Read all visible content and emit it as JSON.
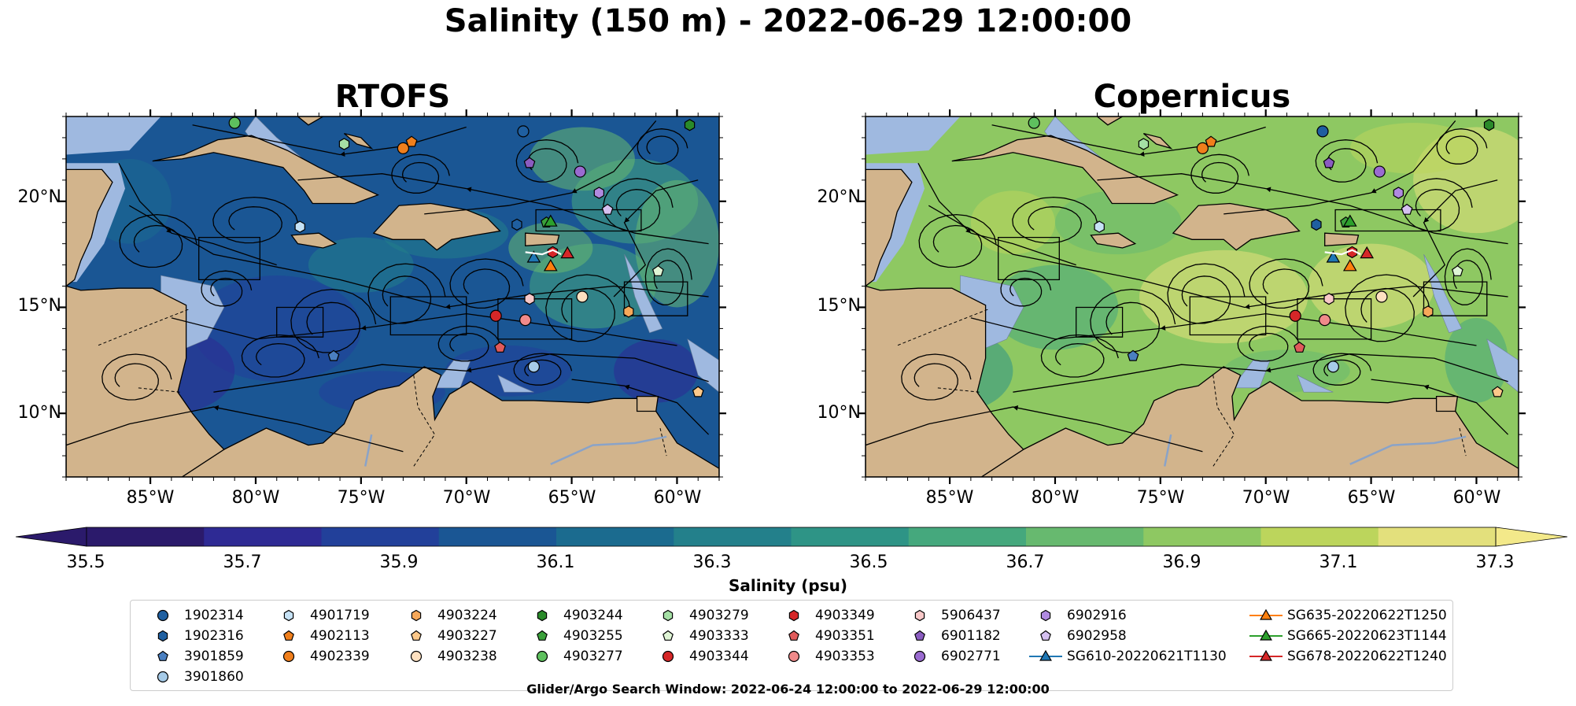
{
  "title": "Salinity (150 m) - 2022-06-29 12:00:00",
  "panels": [
    {
      "id": "rtofs",
      "title": "RTOFS",
      "colormap_level": "low"
    },
    {
      "id": "copernicus",
      "title": "Copernicus",
      "colormap_level": "high"
    }
  ],
  "map": {
    "lon_range": [
      -89,
      -58
    ],
    "lat_range": [
      7,
      24
    ],
    "lon_ticks": [
      "85°W",
      "80°W",
      "75°W",
      "70°W",
      "65°W",
      "60°W"
    ],
    "lat_ticks": [
      "20°N",
      "15°N",
      "10°N"
    ],
    "land_color": "#d2b48c",
    "shelf_color": "#9fb9e0",
    "deep_color": "#2a1a6e"
  },
  "colorbar": {
    "label": "Salinity (psu)",
    "ticks": [
      "35.5",
      "35.7",
      "35.9",
      "36.1",
      "36.3",
      "36.5",
      "36.7",
      "36.9",
      "37.1",
      "37.3"
    ],
    "min": 35.5,
    "max": 37.3,
    "colors": [
      "#2b1a6b",
      "#2e2a94",
      "#22409a",
      "#1a5694",
      "#1b6b8f",
      "#23808b",
      "#2e9486",
      "#45a87d",
      "#67b96f",
      "#8ec862",
      "#bcd55c",
      "#e3e07c"
    ]
  },
  "legend": {
    "items": [
      {
        "id": "1902314",
        "marker": "circle",
        "color": "#1f5fa0"
      },
      {
        "id": "1902316",
        "marker": "hexagon",
        "color": "#1f5fa0"
      },
      {
        "id": "3901859",
        "marker": "pentagon",
        "color": "#4a7fc0"
      },
      {
        "id": "3901860",
        "marker": "circle",
        "color": "#a6cbe8"
      },
      {
        "id": "4901719",
        "marker": "hexagon",
        "color": "#c6e2f5"
      },
      {
        "id": "4902113",
        "marker": "pentagon",
        "color": "#f07f1c"
      },
      {
        "id": "4902339",
        "marker": "circle",
        "color": "#f07f1c"
      },
      {
        "id": "4903224",
        "marker": "hexagon",
        "color": "#f6a85a"
      },
      {
        "id": "4903227",
        "marker": "pentagon",
        "color": "#fcc88a"
      },
      {
        "id": "4903238",
        "marker": "circle",
        "color": "#fde0c0"
      },
      {
        "id": "4903244",
        "marker": "hexagon",
        "color": "#2a8a2a"
      },
      {
        "id": "4903255",
        "marker": "pentagon",
        "color": "#3aa03a"
      },
      {
        "id": "4903277",
        "marker": "circle",
        "color": "#5ec05e"
      },
      {
        "id": "4903279",
        "marker": "hexagon",
        "color": "#a5e0a5"
      },
      {
        "id": "4903333",
        "marker": "pentagon",
        "color": "#dff5d5"
      },
      {
        "id": "4903344",
        "marker": "circle",
        "color": "#d62728"
      },
      {
        "id": "4903349",
        "marker": "hexagon",
        "color": "#d62728"
      },
      {
        "id": "4903351",
        "marker": "pentagon",
        "color": "#e05a5a"
      },
      {
        "id": "4903353",
        "marker": "circle",
        "color": "#f08a8a"
      },
      {
        "id": "5906437",
        "marker": "hexagon",
        "color": "#f8c8c8"
      },
      {
        "id": "6901182",
        "marker": "pentagon",
        "color": "#8a5cc0"
      },
      {
        "id": "6902771",
        "marker": "circle",
        "color": "#9a6bd0"
      },
      {
        "id": "6902916",
        "marker": "hexagon",
        "color": "#b08ae0"
      },
      {
        "id": "6902958",
        "marker": "pentagon",
        "color": "#d5c0f0"
      },
      {
        "id": "SG610-20220621T1130",
        "marker": "triangle-line",
        "color": "#1f77b4"
      },
      {
        "id": "SG635-20220622T1250",
        "marker": "triangle-line",
        "color": "#ff7f0e"
      },
      {
        "id": "SG665-20220623T1144",
        "marker": "triangle-line",
        "color": "#2ca02c"
      },
      {
        "id": "SG678-20220622T1240",
        "marker": "triangle-line",
        "color": "#d62728"
      }
    ],
    "caption": "Glider/Argo Search Window: 2022-06-24 12:00:00 to 2022-06-29 12:00:00"
  },
  "observations": [
    {
      "id": "1902314",
      "lon": -67.3,
      "lat": 23.3
    },
    {
      "id": "1902316",
      "lon": -67.6,
      "lat": 18.9
    },
    {
      "id": "3901859",
      "lon": -76.3,
      "lat": 12.7
    },
    {
      "id": "3901860",
      "lon": -66.8,
      "lat": 12.2
    },
    {
      "id": "4901719",
      "lon": -77.9,
      "lat": 18.8
    },
    {
      "id": "4902113",
      "lon": -72.6,
      "lat": 22.8
    },
    {
      "id": "4902339",
      "lon": -73.0,
      "lat": 22.5
    },
    {
      "id": "4903224",
      "lon": -62.3,
      "lat": 14.8
    },
    {
      "id": "4903227",
      "lon": -59.0,
      "lat": 11.0
    },
    {
      "id": "4903238",
      "lon": -64.5,
      "lat": 15.5
    },
    {
      "id": "4903244",
      "lon": -59.4,
      "lat": 23.6
    },
    {
      "id": "4903255",
      "lon": -66.2,
      "lat": 19.0
    },
    {
      "id": "4903277",
      "lon": -81.0,
      "lat": 23.7
    },
    {
      "id": "4903279",
      "lon": -75.8,
      "lat": 22.7
    },
    {
      "id": "4903333",
      "lon": -60.9,
      "lat": 16.7
    },
    {
      "id": "4903344",
      "lon": -68.6,
      "lat": 14.6
    },
    {
      "id": "4903349",
      "lon": -65.9,
      "lat": 17.6
    },
    {
      "id": "4903351",
      "lon": -68.4,
      "lat": 13.1
    },
    {
      "id": "4903353",
      "lon": -67.2,
      "lat": 14.4
    },
    {
      "id": "5906437",
      "lon": -67.0,
      "lat": 15.4
    },
    {
      "id": "6901182",
      "lon": -67.0,
      "lat": 21.8
    },
    {
      "id": "6902771",
      "lon": -64.6,
      "lat": 21.4
    },
    {
      "id": "6902916",
      "lon": -63.7,
      "lat": 20.4
    },
    {
      "id": "6902958",
      "lon": -63.3,
      "lat": 19.6
    },
    {
      "id": "SG610-20220621T1130",
      "lon": -66.8,
      "lat": 17.3
    },
    {
      "id": "SG635-20220622T1250",
      "lon": -66.0,
      "lat": 16.9
    },
    {
      "id": "SG665-20220623T1144",
      "lon": -66.0,
      "lat": 19.0
    },
    {
      "id": "SG678-20220622T1240",
      "lon": -65.2,
      "lat": 17.5
    }
  ]
}
